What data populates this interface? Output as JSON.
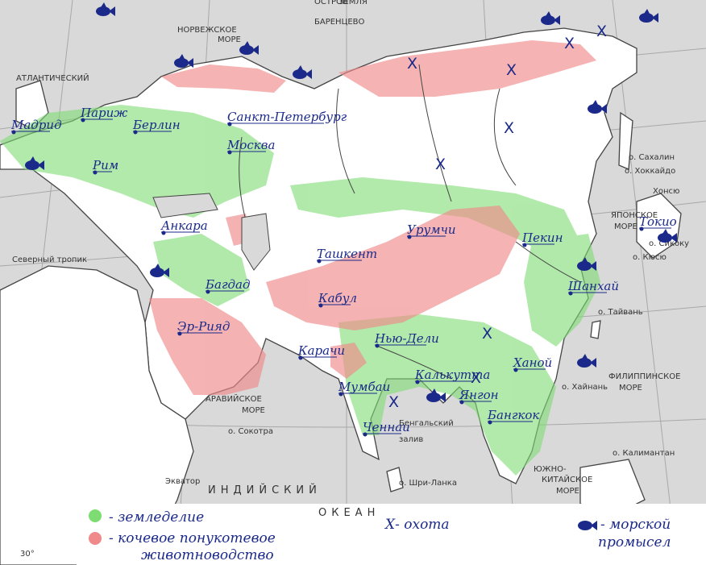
{
  "colors": {
    "sea": "#d9d9d9",
    "land": "#ffffff",
    "agriculture": "#7ddc72",
    "nomadic": "#f08a8a",
    "ink": "#1b2a8a"
  },
  "cities": [
    "Мадрид",
    "Париж",
    "Берлин",
    "Рим",
    "Санкт-Петербург",
    "Москва",
    "Анкара",
    "Багдад",
    "Эр-Рияд",
    "Ташкент",
    "Урумчи",
    "Пекин",
    "Кабул",
    "Карачи",
    "Нью-Дели",
    "Калькутта",
    "Мумбаи",
    "Ченнаи",
    "Янгон",
    "Бангкок",
    "Ханой",
    "Шанхай",
    "Токио"
  ],
  "geo_labels": [
    "НОРВЕЖСКОЕ",
    "МОРЕ",
    "БАРЕНЦЕВО",
    "ОСТРОВ",
    "ЗЕМЛЯ",
    "АРАВИЙСКОЕ",
    "МОРЕ",
    "Бенгальский",
    "залив",
    "о. Сахалин",
    "о. Хоккайдо",
    "Хонсю",
    "о. Сикоку",
    "о. Кюсю",
    "о. Тайвань",
    "о. Хайнань",
    "ЮЖНО-",
    "КИТАЙСКОЕ",
    "МОРЕ",
    "о. Сокотра",
    "о. Шри-Ланка",
    "Северный тропик",
    "ИНДИЙСКИЙ",
    "Экватор",
    "ЯПОНСКОЕ",
    "МОРЕ",
    "ФИЛИППИНСКОЕ",
    "МОРЕ",
    "ОКЕАН",
    "АТЛАНТИЧЕСКИЙ",
    "о. Калимантан",
    "30°"
  ],
  "legend": {
    "agriculture": "- земледелие",
    "nomadic_line1": "- кочевое понукотевое",
    "nomadic_line2": "животноводство",
    "hunting": "Х- охота",
    "fishing_line1": "- морской",
    "fishing_line2": "промысел"
  },
  "hunting_mark": "Х",
  "fish_icon": "fish-icon"
}
